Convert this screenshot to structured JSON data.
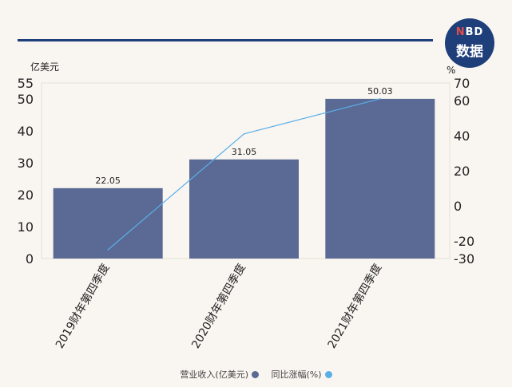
{
  "brand": {
    "logo_top": "NBD",
    "logo_bottom": "数据"
  },
  "chart_data": {
    "type": "bar",
    "categories": [
      "2019财年第四季度",
      "2020财年第四季度",
      "2021财年第四季度"
    ],
    "series": [
      {
        "name": "营业收入(亿美元)",
        "type": "bar",
        "axis": "left",
        "values": [
          22.05,
          31.05,
          50.03
        ],
        "color": "#5a6a94"
      },
      {
        "name": "同比涨幅(%)",
        "type": "line",
        "axis": "right",
        "values": [
          -25,
          41,
          61
        ],
        "color": "#5aaee8"
      }
    ],
    "y_left": {
      "unit": "亿美元",
      "ticks": [
        0,
        10,
        20,
        30,
        40,
        50,
        55
      ],
      "ylim": [
        0,
        55
      ]
    },
    "y_right": {
      "unit": "%",
      "ticks": [
        -30,
        -20,
        0,
        20,
        40,
        60,
        70
      ],
      "ylim": [
        -30,
        70
      ]
    },
    "data_labels": [
      "22.05",
      "31.05",
      "50.03"
    ],
    "grid": true,
    "legend_position": "bottom"
  }
}
